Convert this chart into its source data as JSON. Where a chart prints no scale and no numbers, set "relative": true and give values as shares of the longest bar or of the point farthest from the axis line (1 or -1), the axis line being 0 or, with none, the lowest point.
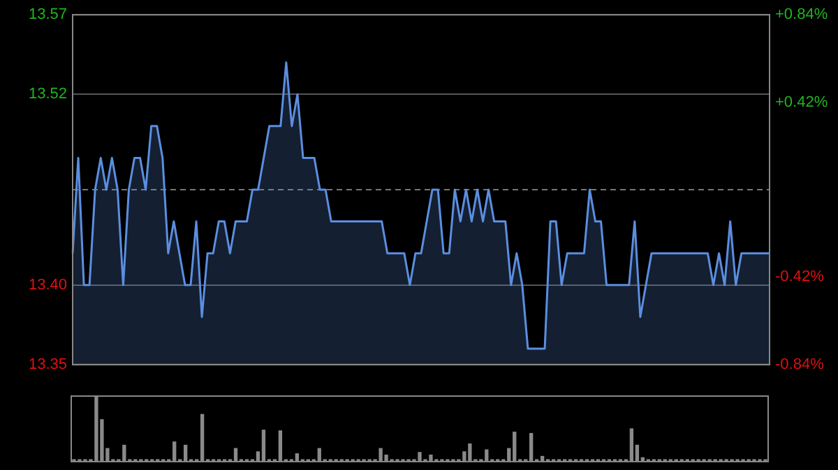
{
  "chart_data": [
    {
      "type": "area",
      "categories": [
        null,
        null,
        null,
        null,
        null,
        null,
        null,
        null,
        null,
        null,
        null,
        null,
        null,
        null,
        null,
        null,
        null,
        null,
        null,
        null,
        null,
        null,
        null,
        null,
        null,
        null,
        null,
        null,
        null,
        null,
        null,
        null,
        null,
        null,
        null,
        null,
        null,
        null,
        null,
        null,
        null,
        null,
        null,
        null,
        null,
        null,
        null,
        null,
        null,
        null,
        null,
        null,
        null,
        null,
        null,
        null,
        null,
        null,
        null,
        null,
        null,
        null,
        null,
        null,
        null,
        null,
        null,
        null,
        null,
        null,
        null,
        null,
        null,
        null,
        null,
        null,
        null,
        null,
        null,
        null,
        null,
        null,
        null,
        null,
        null,
        null,
        null,
        null,
        null,
        null,
        null,
        null,
        null,
        null,
        null,
        null,
        null,
        null,
        null,
        null,
        null,
        null,
        null,
        null,
        null,
        null,
        null,
        null,
        null,
        null,
        null,
        null,
        null,
        null,
        null,
        null,
        null,
        null,
        null,
        null,
        null,
        null,
        null,
        null,
        null
      ],
      "series": [
        {
          "color": "#5b8ee0",
          "values": [
            13.42,
            13.48,
            13.4,
            13.4,
            13.46,
            13.48,
            13.46,
            13.48,
            13.46,
            13.4,
            13.46,
            13.48,
            13.48,
            13.46,
            13.5,
            13.5,
            13.48,
            13.42,
            13.44,
            13.42,
            13.4,
            13.4,
            13.44,
            13.38,
            13.42,
            13.42,
            13.44,
            13.44,
            13.42,
            13.44,
            13.44,
            13.44,
            13.46,
            13.46,
            13.48,
            13.5,
            13.5,
            13.5,
            13.54,
            13.5,
            13.52,
            13.48,
            13.48,
            13.48,
            13.46,
            13.46,
            13.44,
            13.44,
            13.44,
            13.44,
            13.44,
            13.44,
            13.44,
            13.44,
            13.44,
            13.44,
            13.42,
            13.42,
            13.42,
            13.42,
            13.4,
            13.42,
            13.42,
            13.44,
            13.46,
            13.46,
            13.42,
            13.42,
            13.46,
            13.44,
            13.46,
            13.44,
            13.46,
            13.44,
            13.46,
            13.44,
            13.44,
            13.44,
            13.4,
            13.42,
            13.4,
            13.36,
            13.36,
            13.36,
            13.36,
            13.44,
            13.44,
            13.4,
            13.42,
            13.42,
            13.42,
            13.42,
            13.46,
            13.44,
            13.44,
            13.4,
            13.4,
            13.4,
            13.4,
            13.4,
            13.44,
            13.38,
            13.4,
            13.42,
            13.42,
            13.42,
            13.42,
            13.42,
            13.42,
            13.42,
            13.42,
            13.42,
            13.42,
            13.42,
            13.4,
            13.42,
            13.4,
            13.44,
            13.4,
            13.42,
            13.42,
            13.42,
            13.42,
            13.42,
            13.42
          ]
        }
      ],
      "ylim": [
        13.35,
        13.57
      ],
      "yticks": [
        {
          "value": 13.35,
          "label": "13.35"
        },
        {
          "value": 13.4,
          "label": "13.40"
        },
        {
          "value": 13.52,
          "label": "13.52"
        },
        {
          "value": 13.57,
          "label": "13.57"
        }
      ],
      "y2lim": [
        -0.84,
        0.84
      ],
      "y2ticks": [
        {
          "value": -0.84,
          "label": "-0.84%"
        },
        {
          "value": -0.42,
          "label": "-0.42%"
        },
        {
          "value": 0.42,
          "label": "+0.42%"
        },
        {
          "value": 0.84,
          "label": "+0.84%"
        }
      ],
      "ref_lines": [
        {
          "axis": "y",
          "value": 13.46,
          "line_style": "dashed"
        }
      ],
      "grid": "y",
      "tick_labels": "y",
      "legend": false
    },
    {
      "type": "bar",
      "relative": true,
      "categories": [
        null,
        null,
        null,
        null,
        null,
        null,
        null,
        null,
        null,
        null,
        null,
        null,
        null,
        null,
        null,
        null,
        null,
        null,
        null,
        null,
        null,
        null,
        null,
        null,
        null,
        null,
        null,
        null,
        null,
        null,
        null,
        null,
        null,
        null,
        null,
        null,
        null,
        null,
        null,
        null,
        null,
        null,
        null,
        null,
        null,
        null,
        null,
        null,
        null,
        null,
        null,
        null,
        null,
        null,
        null,
        null,
        null,
        null,
        null,
        null,
        null,
        null,
        null,
        null,
        null,
        null,
        null,
        null,
        null,
        null,
        null,
        null,
        null,
        null,
        null,
        null,
        null,
        null,
        null,
        null,
        null,
        null,
        null,
        null,
        null,
        null,
        null,
        null,
        null,
        null,
        null,
        null,
        null,
        null,
        null,
        null,
        null,
        null,
        null,
        null,
        null,
        null,
        null,
        null,
        null,
        null,
        null,
        null,
        null,
        null,
        null,
        null,
        null,
        null,
        null,
        null,
        null,
        null,
        null,
        null,
        null,
        null,
        null,
        null,
        null
      ],
      "series": [
        {
          "color": "#8a8a8a",
          "values": [
            0.03,
            0.03,
            0.03,
            0.03,
            1.0,
            0.64,
            0.2,
            0.03,
            0.03,
            0.25,
            0.03,
            0.03,
            0.03,
            0.03,
            0.03,
            0.03,
            0.03,
            0.03,
            0.3,
            0.03,
            0.25,
            0.03,
            0.03,
            0.72,
            0.03,
            0.03,
            0.03,
            0.03,
            0.03,
            0.2,
            0.03,
            0.03,
            0.03,
            0.15,
            0.48,
            0.03,
            0.03,
            0.47,
            0.03,
            0.03,
            0.12,
            0.03,
            0.03,
            0.03,
            0.2,
            0.03,
            0.03,
            0.03,
            0.03,
            0.03,
            0.03,
            0.03,
            0.03,
            0.03,
            0.03,
            0.2,
            0.1,
            0.03,
            0.03,
            0.03,
            0.03,
            0.03,
            0.14,
            0.03,
            0.1,
            0.03,
            0.03,
            0.03,
            0.03,
            0.03,
            0.15,
            0.27,
            0.03,
            0.03,
            0.18,
            0.03,
            0.03,
            0.03,
            0.2,
            0.45,
            0.03,
            0.03,
            0.43,
            0.03,
            0.08,
            0.03,
            0.03,
            0.03,
            0.03,
            0.03,
            0.03,
            0.03,
            0.03,
            0.03,
            0.03,
            0.03,
            0.03,
            0.03,
            0.03,
            0.03,
            0.5,
            0.25,
            0.06,
            0.03,
            0.03,
            0.03,
            0.03,
            0.03,
            0.03,
            0.03,
            0.03,
            0.03,
            0.03,
            0.03,
            0.03,
            0.03,
            0.03,
            0.03,
            0.03,
            0.03,
            0.03,
            0.03,
            0.03,
            0.03,
            0.03
          ]
        }
      ],
      "grid": false,
      "tick_labels": false,
      "legend": false
    }
  ]
}
